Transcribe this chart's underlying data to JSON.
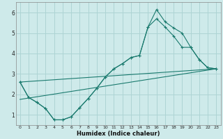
{
  "xlabel": "Humidex (Indice chaleur)",
  "bg_color": "#ceeaea",
  "line_color": "#1a7a6e",
  "grid_color": "#add4d4",
  "xlim": [
    -0.5,
    23.5
  ],
  "ylim": [
    0.5,
    6.5
  ],
  "xticks": [
    0,
    1,
    2,
    3,
    4,
    5,
    6,
    7,
    8,
    9,
    10,
    11,
    12,
    13,
    14,
    15,
    16,
    17,
    18,
    19,
    20,
    21,
    22,
    23
  ],
  "yticks": [
    1,
    2,
    3,
    4,
    5,
    6
  ],
  "line1_x": [
    0,
    1,
    2,
    3,
    4,
    5,
    6,
    7,
    8,
    9,
    10,
    11,
    12,
    13,
    14,
    15,
    16,
    17,
    18,
    19,
    20,
    21,
    22,
    23
  ],
  "line1_y": [
    2.6,
    1.85,
    1.6,
    1.3,
    0.75,
    0.75,
    0.9,
    1.35,
    1.8,
    2.3,
    2.85,
    3.25,
    3.5,
    3.8,
    3.9,
    5.3,
    6.15,
    5.55,
    5.25,
    5.0,
    4.3,
    3.7,
    3.3,
    3.25
  ],
  "line2_x": [
    0,
    1,
    2,
    3,
    4,
    5,
    6,
    7,
    8,
    9,
    10,
    11,
    12,
    13,
    14,
    15,
    16,
    17,
    18,
    19,
    20,
    21,
    22,
    23
  ],
  "line2_y": [
    2.6,
    1.85,
    1.6,
    1.3,
    0.75,
    0.75,
    0.9,
    1.35,
    1.8,
    2.3,
    2.85,
    3.25,
    3.5,
    3.8,
    3.9,
    5.3,
    5.7,
    5.3,
    4.85,
    4.3,
    4.3,
    3.7,
    3.3,
    3.25
  ],
  "line3_x": [
    0,
    23
  ],
  "line3_y": [
    1.75,
    3.25
  ],
  "line4_x": [
    0,
    23
  ],
  "line4_y": [
    2.6,
    3.25
  ]
}
